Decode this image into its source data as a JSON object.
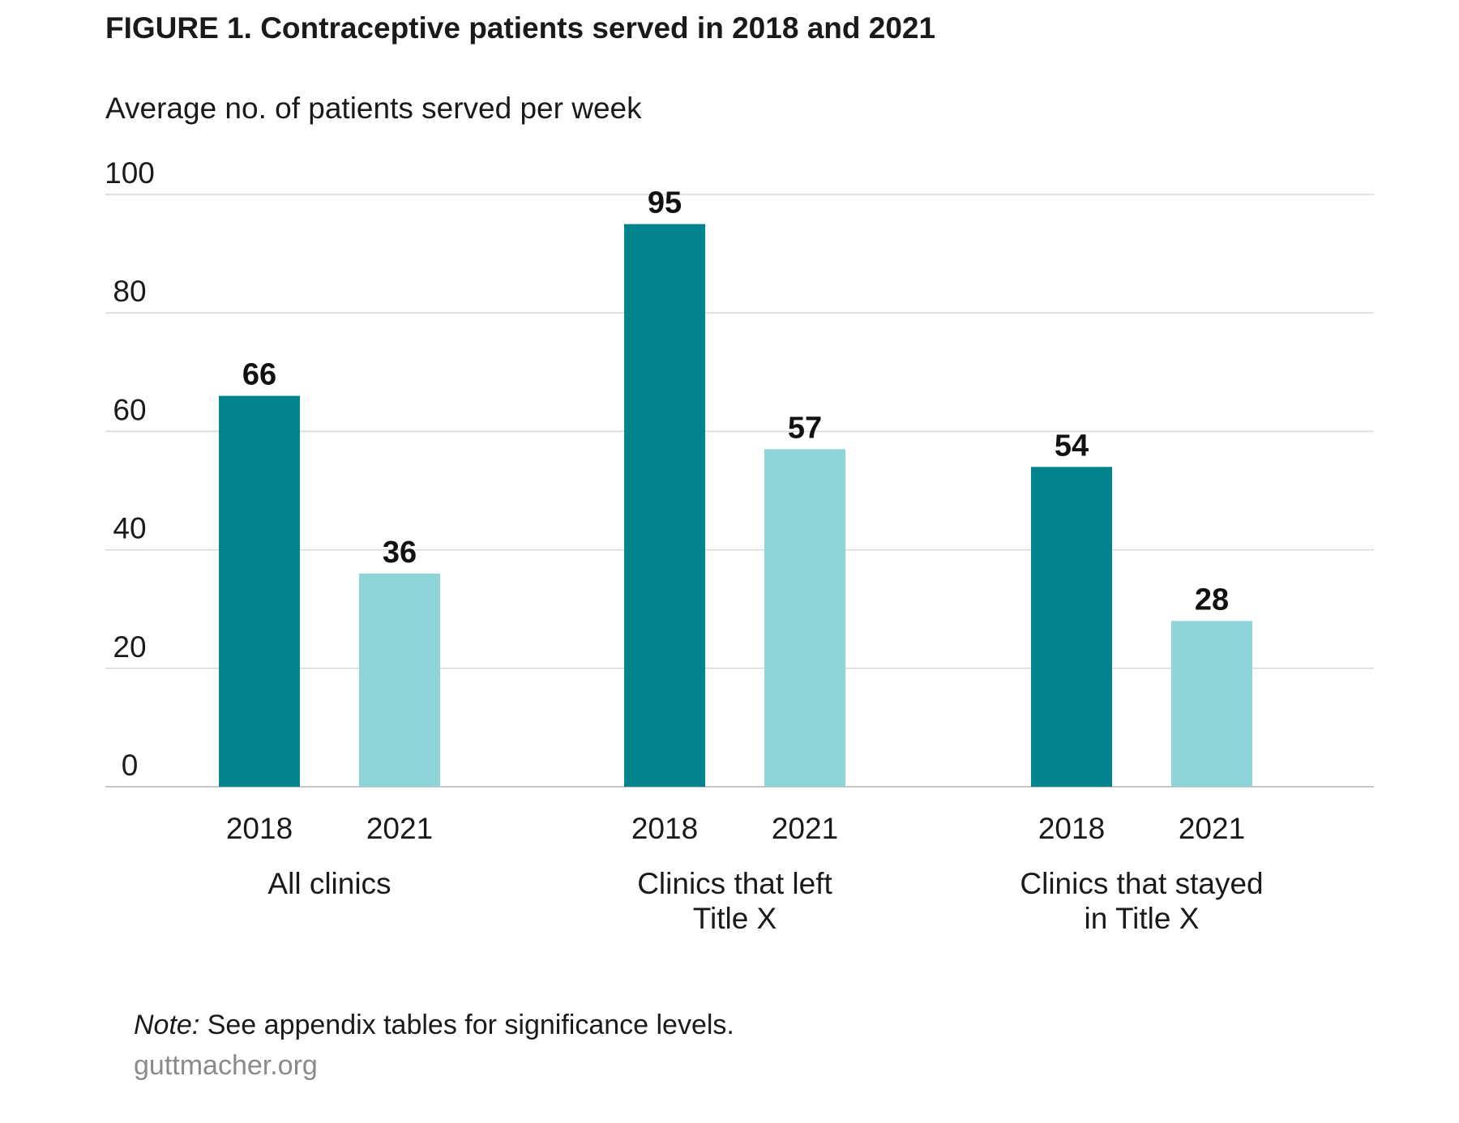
{
  "figure": {
    "title": "FIGURE 1. Contraceptive patients served in 2018 and 2021",
    "subtitle": "Average no. of patients served per week"
  },
  "footer": {
    "note_label": "Note:",
    "note_text": " See appendix tables for significance levels.",
    "source": "guttmacher.org"
  },
  "chart_data": {
    "type": "bar",
    "title": "FIGURE 1. Contraceptive patients served in 2018 and 2021",
    "ylabel": "Average no. of patients served per week",
    "xlabel": "",
    "ylim": [
      0,
      100
    ],
    "yticks": [
      0,
      20,
      40,
      60,
      80,
      100
    ],
    "grid": true,
    "groups": [
      {
        "label_lines": [
          "All clinics"
        ]
      },
      {
        "label_lines": [
          "Clinics that left",
          "Title X"
        ]
      },
      {
        "label_lines": [
          "Clinics that stayed",
          "in Title X"
        ]
      }
    ],
    "series": [
      {
        "name": "2018",
        "color": "#00838b",
        "values": [
          66,
          95,
          54
        ]
      },
      {
        "name": "2021",
        "color": "#8fd4d8",
        "values": [
          36,
          57,
          28
        ]
      }
    ],
    "gridline_color": "#d9d9d9",
    "baseline_color": "#c8c8c8"
  }
}
